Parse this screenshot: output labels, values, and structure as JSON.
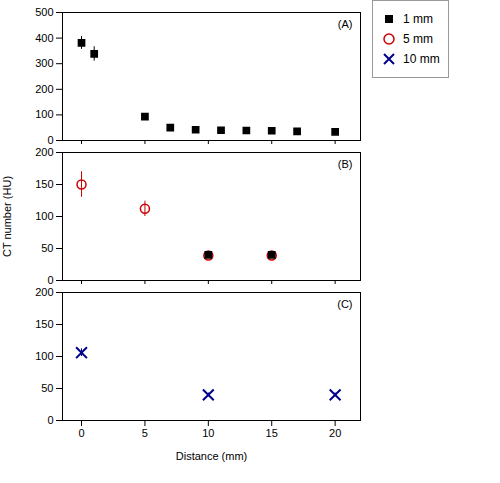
{
  "chart_data": [
    {
      "type": "scatter",
      "annotations": [
        "(A)"
      ],
      "series": [
        {
          "name": "1 mm",
          "color": "#000000",
          "marker": "square",
          "x": [
            0,
            1,
            5,
            7,
            9,
            11,
            13,
            15,
            17,
            20
          ],
          "values": [
            381,
            338,
            93,
            50,
            42,
            40,
            39,
            38,
            36,
            34
          ],
          "yerr": [
            25,
            28,
            8,
            5,
            4,
            3,
            3,
            3,
            3,
            3
          ]
        }
      ],
      "xlim": [
        -1.5,
        22
      ],
      "xticks": [
        0,
        5,
        10,
        15,
        20
      ],
      "ylim": [
        0,
        500
      ],
      "yticks": [
        0,
        100,
        200,
        300,
        400,
        500
      ],
      "tick_labels": "y"
    },
    {
      "type": "scatter",
      "annotations": [
        "(B)"
      ],
      "ylabel": "CT number (HU)",
      "legend": "right",
      "series": [
        {
          "name": "5 mm",
          "color": "#cc0000",
          "marker": "circle_open",
          "x": [
            0,
            5,
            10,
            15
          ],
          "values": [
            150,
            112,
            39,
            39
          ],
          "yerr": [
            20,
            12,
            3,
            3
          ]
        },
        {
          "name": "1 mm",
          "color": "#000000",
          "marker": "square",
          "x": [
            10,
            15
          ],
          "values": [
            40,
            40
          ],
          "yerr": [
            2,
            2
          ]
        }
      ],
      "xlim": [
        -1.5,
        22
      ],
      "xticks": [
        0,
        5,
        10,
        15,
        20
      ],
      "ylim": [
        0,
        200
      ],
      "yticks": [
        0,
        50,
        100,
        150,
        200
      ],
      "tick_labels": "y"
    },
    {
      "type": "scatter",
      "annotations": [
        "(C)"
      ],
      "xlabel": "Distance (mm)",
      "series": [
        {
          "name": "10 mm",
          "color": "#00008B",
          "marker": "x",
          "x": [
            0,
            10,
            20
          ],
          "values": [
            106,
            40,
            40
          ],
          "yerr": [
            6,
            3,
            3
          ]
        }
      ],
      "xlim": [
        -1.5,
        22
      ],
      "xticks": [
        0,
        5,
        10,
        15,
        20
      ],
      "ylim": [
        0,
        200
      ],
      "yticks": [
        0,
        50,
        100,
        150,
        200
      ]
    }
  ]
}
